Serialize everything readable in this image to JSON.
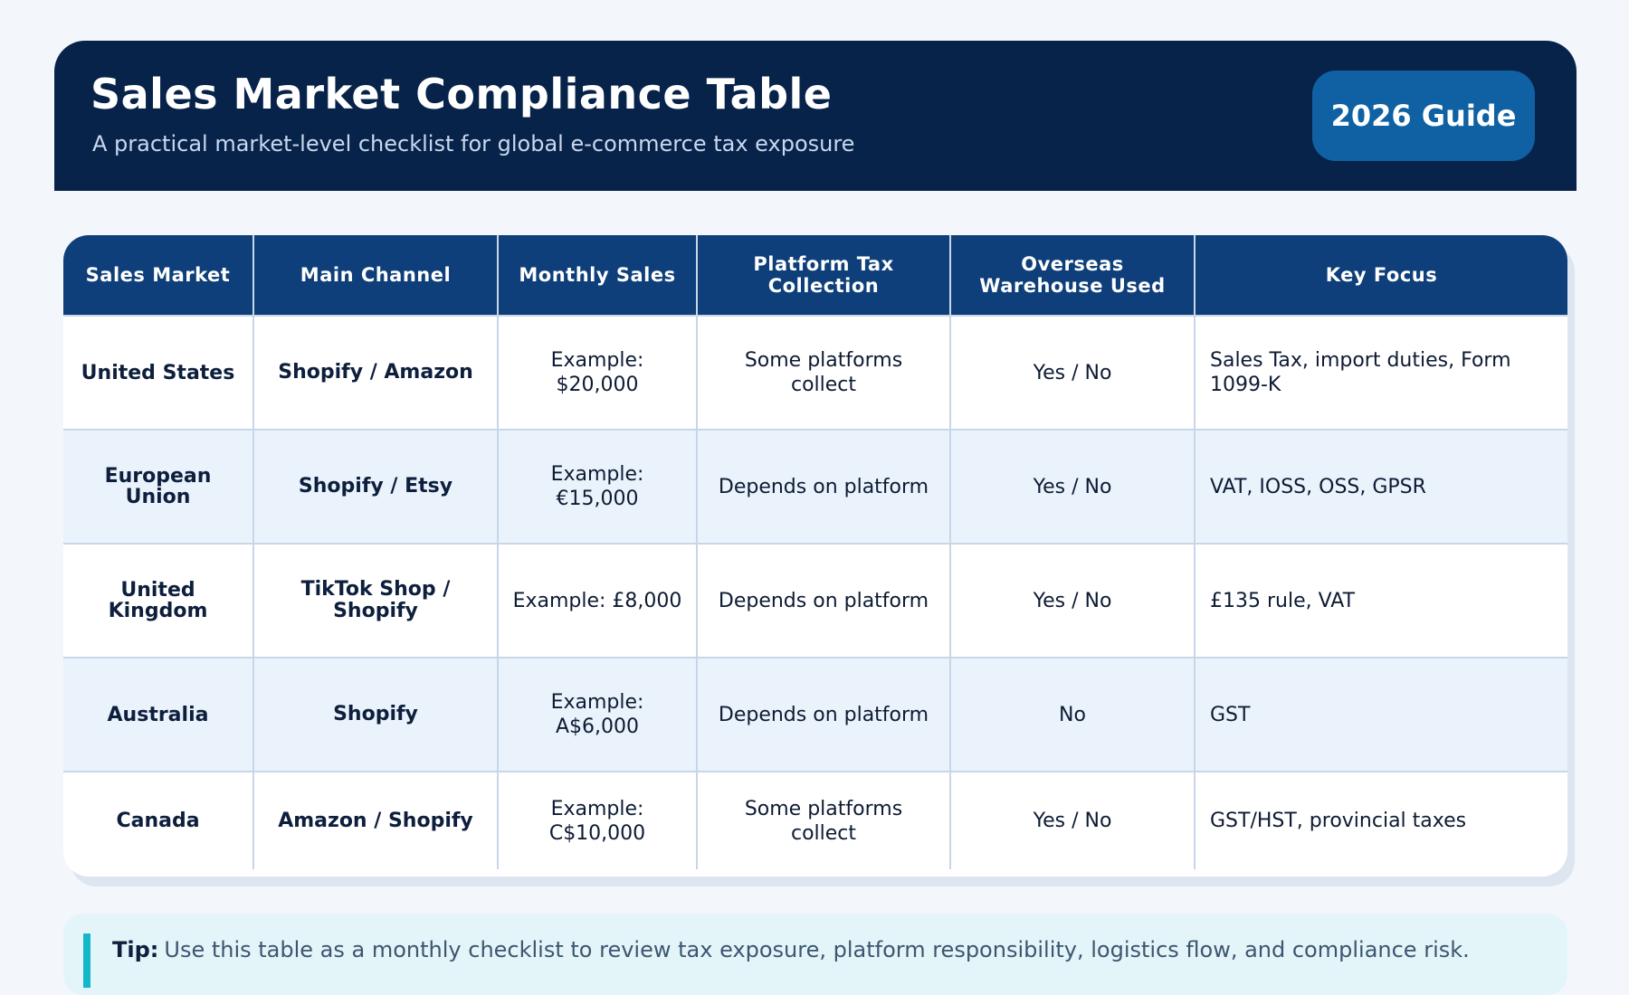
{
  "header": {
    "title": "Sales Market Compliance Table",
    "subtitle": "A practical market-level checklist for global e-commerce tax exposure",
    "badge": "2026 Guide"
  },
  "table": {
    "columns": [
      "Sales Market",
      "Main Channel",
      "Monthly Sales",
      "Platform Tax Collection",
      "Overseas Warehouse Used",
      "Key Focus"
    ],
    "rows": [
      {
        "market": "United States",
        "channel": "Shopify / Amazon",
        "sales": "Example: $20,000",
        "platform_tax": "Some platforms collect",
        "warehouse": "Yes / No",
        "focus": "Sales Tax, import duties, Form 1099-K"
      },
      {
        "market": "European Union",
        "channel": "Shopify / Etsy",
        "sales": "Example: €15,000",
        "platform_tax": "Depends on platform",
        "warehouse": "Yes / No",
        "focus": "VAT, IOSS, OSS, GPSR"
      },
      {
        "market": "United Kingdom",
        "channel": "TikTok Shop / Shopify",
        "sales": "Example: £8,000",
        "platform_tax": "Depends on platform",
        "warehouse": "Yes / No",
        "focus": "£135 rule, VAT"
      },
      {
        "market": "Australia",
        "channel": "Shopify",
        "sales": "Example: A$6,000",
        "platform_tax": "Depends on platform",
        "warehouse": "No",
        "focus": "GST"
      },
      {
        "market": "Canada",
        "channel": "Amazon / Shopify",
        "sales": "Example: C$10,000",
        "platform_tax": "Some platforms collect",
        "warehouse": "Yes / No",
        "focus": "GST/HST, provincial taxes"
      }
    ]
  },
  "tip": {
    "label": "Tip:",
    "text": "Use this table as a monthly checklist to review tax exposure, platform responsibility, logistics flow, and compliance risk."
  },
  "colors": {
    "header_bg": "#08234a",
    "table_header_bg": "#0e3f7a",
    "badge_bg": "#0f61a3",
    "alt_row_bg": "#eaf3fc",
    "tip_bg": "#e4f5f9",
    "tip_accent": "#14b7c8"
  }
}
